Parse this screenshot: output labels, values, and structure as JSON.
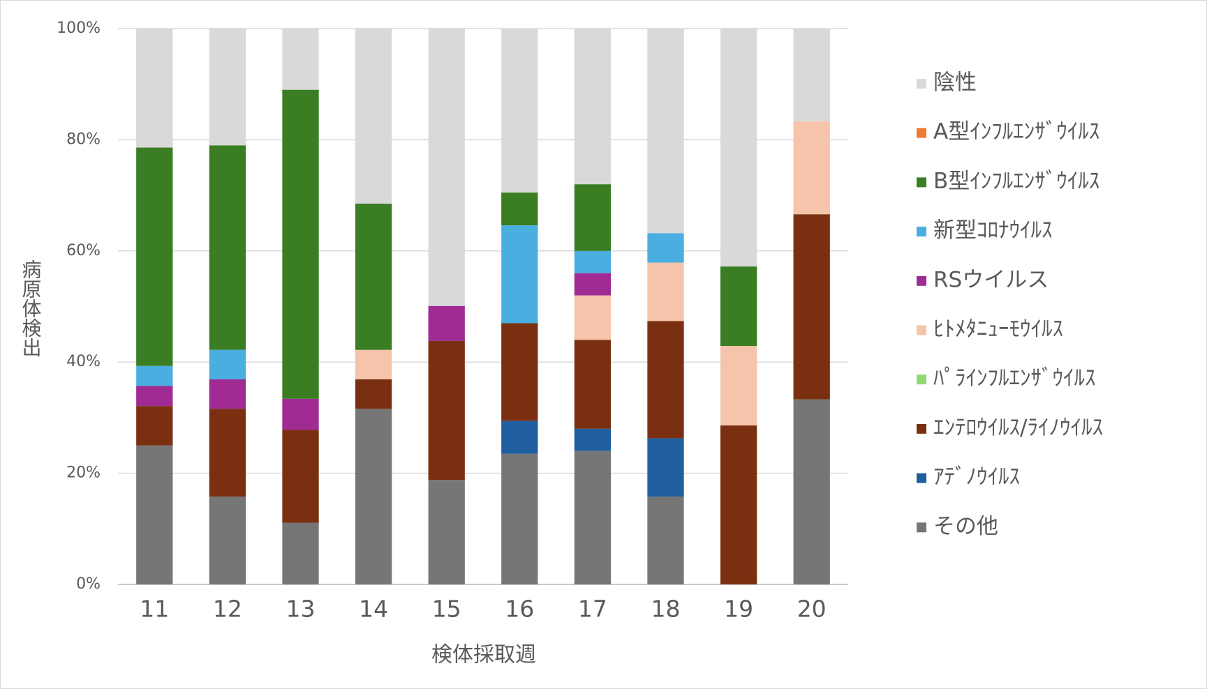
{
  "chart_data": {
    "type": "stacked_bar",
    "x_label": "検体採取週",
    "y_label": "病原体検出",
    "categories": [
      "11",
      "12",
      "13",
      "14",
      "15",
      "16",
      "17",
      "18",
      "19",
      "20"
    ],
    "ylim": [
      0,
      100
    ],
    "yticks": [
      {
        "value": 0,
        "label": "0%"
      },
      {
        "value": 20,
        "label": "20%"
      },
      {
        "value": 40,
        "label": "40%"
      },
      {
        "value": 60,
        "label": "60%"
      },
      {
        "value": 80,
        "label": "80%"
      },
      {
        "value": 100,
        "label": "100%"
      }
    ],
    "grid": true,
    "legend": "right",
    "series": [
      {
        "name": "その他",
        "color": "#767676",
        "values": [
          25.0,
          15.8,
          11.1,
          31.6,
          18.8,
          23.5,
          24,
          15.8,
          0,
          33.3
        ]
      },
      {
        "name": "ｱﾃﾞﾉｳｲﾙｽ",
        "color": "#1f5fa0",
        "values": [
          0,
          0,
          0,
          0,
          0,
          5.9,
          4,
          10.5,
          0,
          0
        ]
      },
      {
        "name": "ｴﾝﾃﾛｳｲﾙｽ/ﾗｲﾉｳｲﾙｽ",
        "color": "#7a3010",
        "values": [
          7.1,
          15.8,
          16.7,
          5.3,
          25,
          17.6,
          16,
          21.1,
          28.6,
          33.3
        ]
      },
      {
        "name": "ﾊﾟﾗｲﾝﾌﾙｴﾝｻﾞｳｲﾙｽ",
        "color": "#8ed973",
        "values": [
          0,
          0,
          0,
          0,
          0,
          0,
          0,
          0,
          0,
          0
        ]
      },
      {
        "name": "ﾋﾄﾒﾀﾆｭｰﾓｳｲﾙｽ",
        "color": "#f5c4ab",
        "values": [
          0,
          0,
          0,
          5.3,
          0,
          0,
          8,
          10.5,
          14.3,
          16.7
        ]
      },
      {
        "name": "RSウイルス",
        "color": "#a02b93",
        "values": [
          3.6,
          5.3,
          5.6,
          0,
          6.3,
          0,
          4,
          0,
          0,
          0
        ]
      },
      {
        "name": "新型ｺﾛﾅｳｲﾙｽ",
        "color": "#4aaee0",
        "values": [
          3.6,
          5.3,
          0,
          0,
          0,
          17.6,
          4,
          5.3,
          0,
          0
        ]
      },
      {
        "name": "B型ｲﾝﾌﾙｴﾝｻﾞｳｲﾙｽ",
        "color": "#3a7d22",
        "values": [
          39.3,
          36.8,
          55.6,
          26.3,
          0,
          5.9,
          12,
          0,
          14.3,
          0
        ]
      },
      {
        "name": "A型ｲﾝﾌﾙｴﾝｻﾞｳｲﾙｽ",
        "color": "#ed7d31",
        "values": [
          0,
          0,
          0,
          0,
          0,
          0,
          0,
          0,
          0,
          0
        ]
      },
      {
        "name": "陰性",
        "color": "#d9d9d9",
        "values": [
          21.4,
          21.1,
          11.1,
          31.6,
          50,
          29.4,
          28,
          36.8,
          42.9,
          16.7
        ]
      }
    ]
  }
}
